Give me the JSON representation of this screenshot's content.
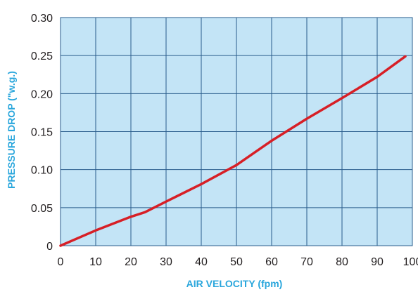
{
  "chart_data": {
    "type": "line",
    "title": "",
    "xlabel": "AIR VELOCITY (fpm)",
    "ylabel": "PRESSURE  DROP (\"w.g.)",
    "xlim": [
      0,
      100
    ],
    "ylim": [
      0,
      0.3
    ],
    "x_ticks": [
      0,
      10,
      20,
      30,
      40,
      50,
      60,
      70,
      80,
      90,
      100
    ],
    "x_tick_labels": [
      "0",
      "10",
      "20",
      "30",
      "40",
      "50",
      "60",
      "70",
      "80",
      "90",
      "100"
    ],
    "y_ticks": [
      0,
      0.05,
      0.1,
      0.15,
      0.2,
      0.25,
      0.3
    ],
    "y_tick_labels": [
      "0",
      "0.05",
      "0.10",
      "0.15",
      "0.20",
      "0.25",
      "0.30"
    ],
    "grid": true,
    "series": [
      {
        "x": [
          0,
          10,
          20,
          24,
          30,
          40,
          50,
          55,
          60,
          70,
          80,
          90,
          98
        ],
        "values": [
          0,
          0.02,
          0.038,
          0.044,
          0.058,
          0.081,
          0.106,
          0.122,
          0.138,
          0.167,
          0.194,
          0.222,
          0.249
        ]
      }
    ],
    "colors": {
      "plot_background": "#c3e4f6",
      "grid": "#2a5d8c",
      "line": "#d71f26",
      "axis_title": "#29a6dc",
      "tick_text": "#231f20"
    }
  }
}
